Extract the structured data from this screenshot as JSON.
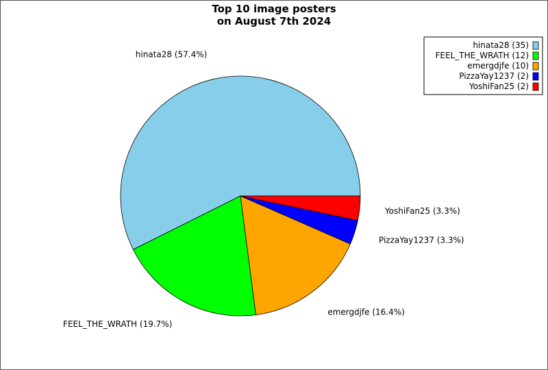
{
  "chart_data": {
    "type": "pie",
    "title": [
      "Top 10 image posters",
      "on August 7th 2024"
    ],
    "slices": [
      {
        "name": "hinata28",
        "value": 35,
        "percent_label": "hinata28 (57.4%)",
        "legend_label": "hinata28 (35)",
        "color": "#87CEEB"
      },
      {
        "name": "FEEL_THE_WRATH",
        "value": 12,
        "percent_label": "FEEL_THE_WRATH (19.7%)",
        "legend_label": "FEEL_THE_WRATH (12)",
        "color": "#00FF00"
      },
      {
        "name": "emergdjfe",
        "value": 10,
        "percent_label": "emergdjfe (16.4%)",
        "legend_label": "emergdjfe (10)",
        "color": "#FFA500"
      },
      {
        "name": "PizzaYay1237",
        "value": 2,
        "percent_label": "PizzaYay1237 (3.3%)",
        "legend_label": "PizzaYay1237 (2)",
        "color": "#0000FF"
      },
      {
        "name": "YoshiFan25",
        "value": 2,
        "percent_label": "YoshiFan25 (3.3%)",
        "legend_label": "YoshiFan25 (2)",
        "color": "#FF0000"
      }
    ],
    "start_angle_deg": 0,
    "direction": "counterclockwise",
    "legend_position": "top-right"
  }
}
